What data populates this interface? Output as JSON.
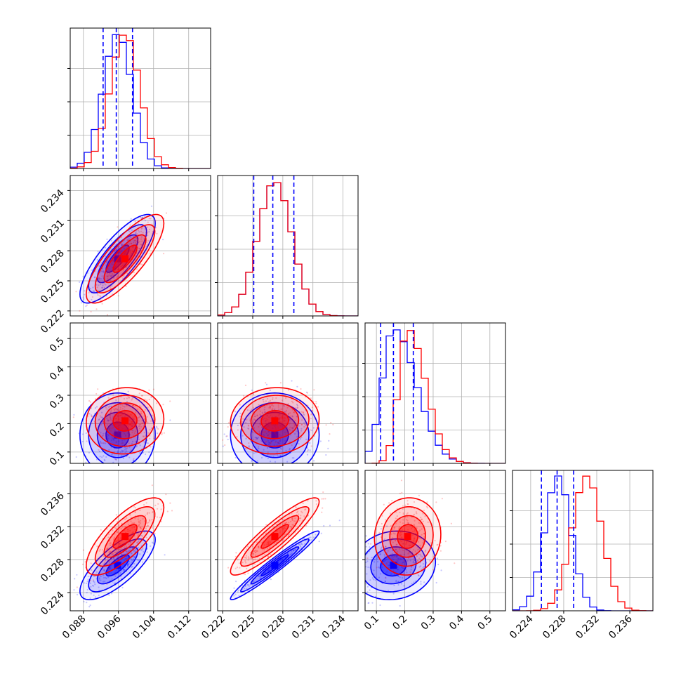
{
  "chart_data": {
    "type": "corner",
    "title": "",
    "grid": true,
    "series": [
      {
        "color": "#0000ff",
        "mean": [
          0.0958,
          0.2272,
          0.16,
          0.2273
        ],
        "std": [
          0.0033,
          0.0017,
          0.057,
          0.0016
        ]
      },
      {
        "color": "#ff0000",
        "mean": [
          0.0975,
          0.2272,
          0.21,
          0.2308
        ],
        "std": [
          0.0034,
          0.0017,
          0.045,
          0.0018
        ]
      }
    ],
    "correlations": {
      "blue": {
        "1-0": 0.8,
        "2-0": 0.0,
        "2-1": 0.0,
        "3-0": 0.75,
        "3-1": 0.97,
        "3-2": 0.1
      },
      "red": {
        "1-0": 0.8,
        "2-0": 0.05,
        "2-1": 0.05,
        "3-0": 0.75,
        "3-1": 0.9,
        "3-2": 0.05
      }
    },
    "quantile_lines": {
      "color": "#0000ff",
      "values": [
        [
          0.0925,
          0.0955,
          0.0992
        ],
        [
          0.2251,
          0.227,
          0.2291
        ],
        [
          0.115,
          0.16,
          0.23
        ],
        [
          0.2253,
          0.2272,
          0.2292
        ]
      ]
    },
    "axes": [
      {
        "range": [
          0.085,
          0.117
        ],
        "ticks": [
          0.088,
          0.096,
          0.104,
          0.112
        ],
        "tick_labels": [
          "0.088",
          "0.096",
          "0.104",
          "0.112"
        ]
      },
      {
        "range": [
          0.2215,
          0.2355
        ],
        "ticks": [
          0.222,
          0.225,
          0.228,
          0.231,
          0.234
        ],
        "tick_labels": [
          "0.222",
          "0.225",
          "0.228",
          "0.231",
          "0.234"
        ]
      },
      {
        "range": [
          0.06,
          0.555
        ],
        "ticks": [
          0.1,
          0.2,
          0.3,
          0.4,
          0.5
        ],
        "tick_labels": [
          "0.1",
          "0.2",
          "0.3",
          "0.4",
          "0.5"
        ]
      },
      {
        "range": [
          0.2218,
          0.2388
        ],
        "ticks": [
          0.224,
          0.228,
          0.232,
          0.236
        ],
        "tick_labels": [
          "0.224",
          "0.228",
          "0.232",
          "0.236"
        ]
      }
    ]
  }
}
